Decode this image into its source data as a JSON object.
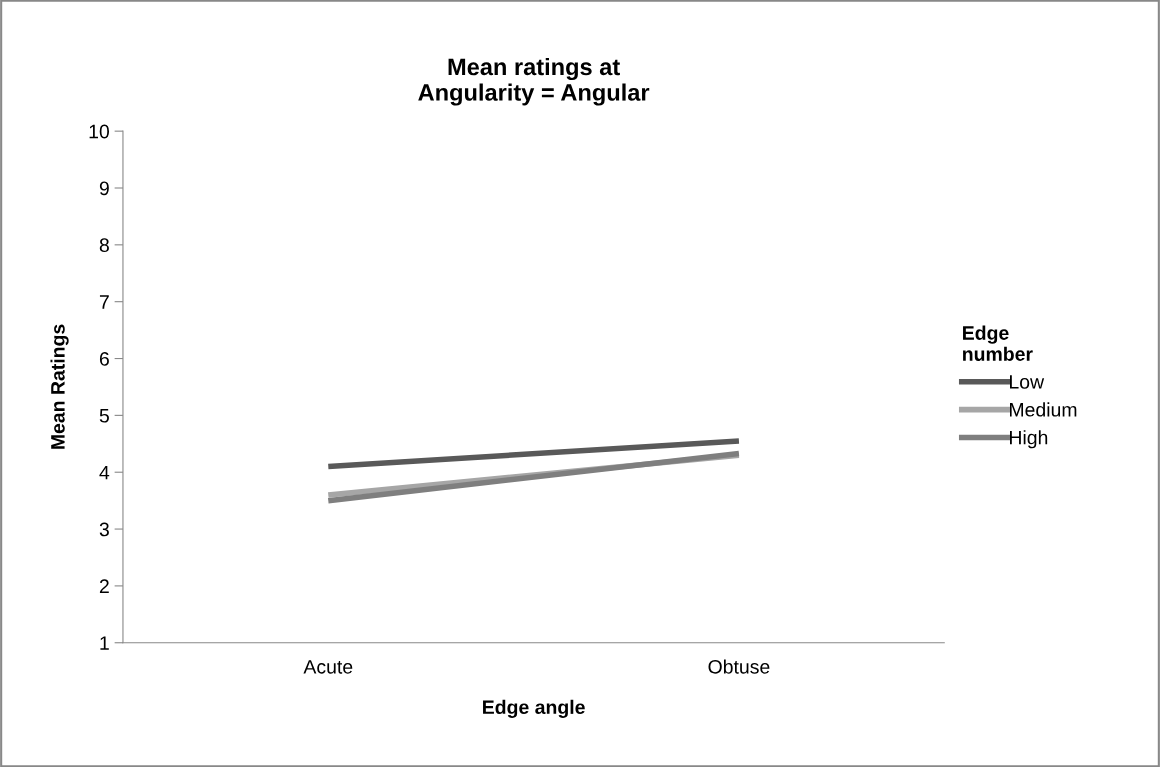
{
  "chart_data": {
    "type": "line",
    "title": "Mean ratings at\nAngularity = Angular",
    "xlabel": "Edge angle",
    "ylabel": "Mean Ratings",
    "legend_title": "Edge\nnumber",
    "categories": [
      "Acute",
      "Obtuse"
    ],
    "series": [
      {
        "name": "Low",
        "color": "#595959",
        "values": [
          4.1,
          4.55
        ]
      },
      {
        "name": "Medium",
        "color": "#a6a6a6",
        "values": [
          3.6,
          4.3
        ]
      },
      {
        "name": "High",
        "color": "#7f7f7f",
        "values": [
          3.5,
          4.33
        ]
      }
    ],
    "ylim": [
      1,
      10
    ],
    "yticks": [
      1,
      2,
      3,
      4,
      5,
      6,
      7,
      8,
      9,
      10
    ],
    "grid": false,
    "legend": "right",
    "marker": "none",
    "line_style": "solid"
  }
}
